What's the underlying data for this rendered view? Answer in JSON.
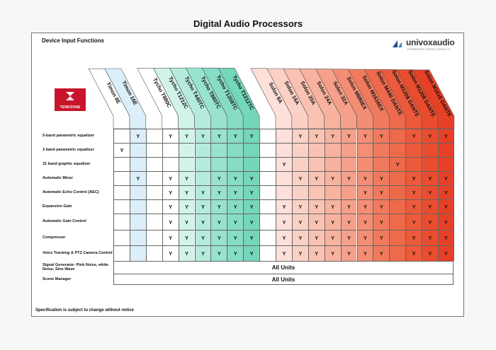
{
  "title": "Digital Audio Processors",
  "section_heading": "Device  Input  Functions",
  "footnote": "Specification is subject to change without notice",
  "brand": {
    "wordmark": "univoxaudio",
    "tagline": "POWERING INTELLIGIBILITY"
  },
  "partner": {
    "label": "TENDZONE"
  },
  "columns": [
    {
      "name": "Timon 8E",
      "color": "#ffffff"
    },
    {
      "name": "Timon 16E",
      "color": "#dceef9"
    },
    {
      "name": "",
      "color": "#ffffff"
    },
    {
      "name": "Tycho T880C",
      "color": "#ffffff"
    },
    {
      "name": "Tycho T1212C",
      "color": "#d2f3ea"
    },
    {
      "name": "Tycho T440TC",
      "color": "#b4ebdc"
    },
    {
      "name": "Tycho T880TC",
      "color": "#98e2ce"
    },
    {
      "name": "Tycho T1208TC",
      "color": "#86dcc4"
    },
    {
      "name": "Tycho T1212TC",
      "color": "#74d6ba"
    },
    {
      "name": "",
      "color": "#ffffff"
    },
    {
      "name": "Solon 8A",
      "color": "#fde0da"
    },
    {
      "name": "Solon 16A",
      "color": "#fbd1c6"
    },
    {
      "name": "Solon 20A",
      "color": "#f9c2b2"
    },
    {
      "name": "Solon 24A",
      "color": "#f7b39f"
    },
    {
      "name": "Solon 32A",
      "color": "#f5a08a"
    },
    {
      "name": "Solon M880EX",
      "color": "#f38e75"
    },
    {
      "name": "Solon M1616EX",
      "color": "#f07a5e"
    },
    {
      "name": "Solon M440 DANTE",
      "color": "#ee6a4c"
    },
    {
      "name": "Solon M1208 DANTE",
      "color": "#ec5a3b"
    },
    {
      "name": "Solon M1208 DANTE",
      "color": "#ea4c2e"
    },
    {
      "name": "Solon M1616  DANTE",
      "color": "#e84026"
    }
  ],
  "rows": [
    {
      "label": "5-band parametric equalizer",
      "cells": [
        "",
        "Y",
        "",
        "Y",
        "Y",
        "Y",
        "Y",
        "Y",
        "Y",
        "",
        "",
        "Y",
        "Y",
        "Y",
        "Y",
        "Y",
        "Y",
        "",
        "Y",
        "Y",
        "Y"
      ]
    },
    {
      "label": "3 band parametric equalizer",
      "cells": [
        "Y",
        "",
        "",
        "",
        "",
        "",
        "",
        "",
        "",
        "",
        "",
        "",
        "",
        "",
        "",
        "",
        "",
        "",
        "",
        "",
        ""
      ]
    },
    {
      "label": "31 band graphic equalizer",
      "cells": [
        "",
        "",
        "",
        "",
        "",
        "",
        "",
        "",
        "",
        "",
        "Y",
        "",
        "",
        "",
        "",
        "",
        "",
        "Y",
        "",
        "",
        ""
      ]
    },
    {
      "label": "Automatic Mixer",
      "cells": [
        "",
        "Y",
        "",
        "Y",
        "Y",
        "",
        "Y",
        "Y",
        "Y",
        "",
        "",
        "Y",
        "Y",
        "Y",
        "Y",
        "Y",
        "Y",
        "",
        "Y",
        "Y",
        "Y"
      ]
    },
    {
      "label": "Automatic Echo Control (AEC)",
      "cells": [
        "",
        "",
        "",
        "Y",
        "Y",
        "Y",
        "Y",
        "Y",
        "Y",
        "",
        "",
        "",
        "",
        "",
        "",
        "Y",
        "Y",
        "",
        "Y",
        "Y",
        "Y"
      ]
    },
    {
      "label": "Expansion Gate",
      "cells": [
        "",
        "",
        "",
        "Y",
        "Y",
        "Y",
        "Y",
        "Y",
        "Y",
        "",
        "Y",
        "Y",
        "Y",
        "Y",
        "Y",
        "Y",
        "Y",
        "",
        "Y",
        "Y",
        "Y"
      ]
    },
    {
      "label": "Automatic Gain Control",
      "cells": [
        "",
        "",
        "",
        "Y",
        "Y",
        "Y",
        "Y",
        "Y",
        "Y",
        "",
        "Y",
        "Y",
        "Y",
        "Y",
        "Y",
        "Y",
        "Y",
        "",
        "Y",
        "Y",
        "Y"
      ]
    },
    {
      "label": "Compressor",
      "cells": [
        "",
        "",
        "",
        "Y",
        "Y",
        "Y",
        "Y",
        "Y",
        "Y",
        "",
        "Y",
        "Y",
        "Y",
        "Y",
        "Y",
        "Y",
        "Y",
        "",
        "Y",
        "Y",
        "Y"
      ]
    },
    {
      "label": "Voice Tracking & PTZ Camera Control",
      "cells": [
        "",
        "",
        "",
        "Y",
        "Y",
        "Y",
        "Y",
        "Y",
        "Y",
        "",
        "Y",
        "Y",
        "Y",
        "Y",
        "Y",
        "Y",
        "Y",
        "",
        "Y",
        "Y",
        "Y"
      ]
    }
  ],
  "merged_rows": [
    {
      "label": "Signal Generator- Pink Noise, white Noise,  Sine Wave",
      "value": "All Units"
    },
    {
      "label": "Scene Manager",
      "value": "All Units"
    }
  ]
}
